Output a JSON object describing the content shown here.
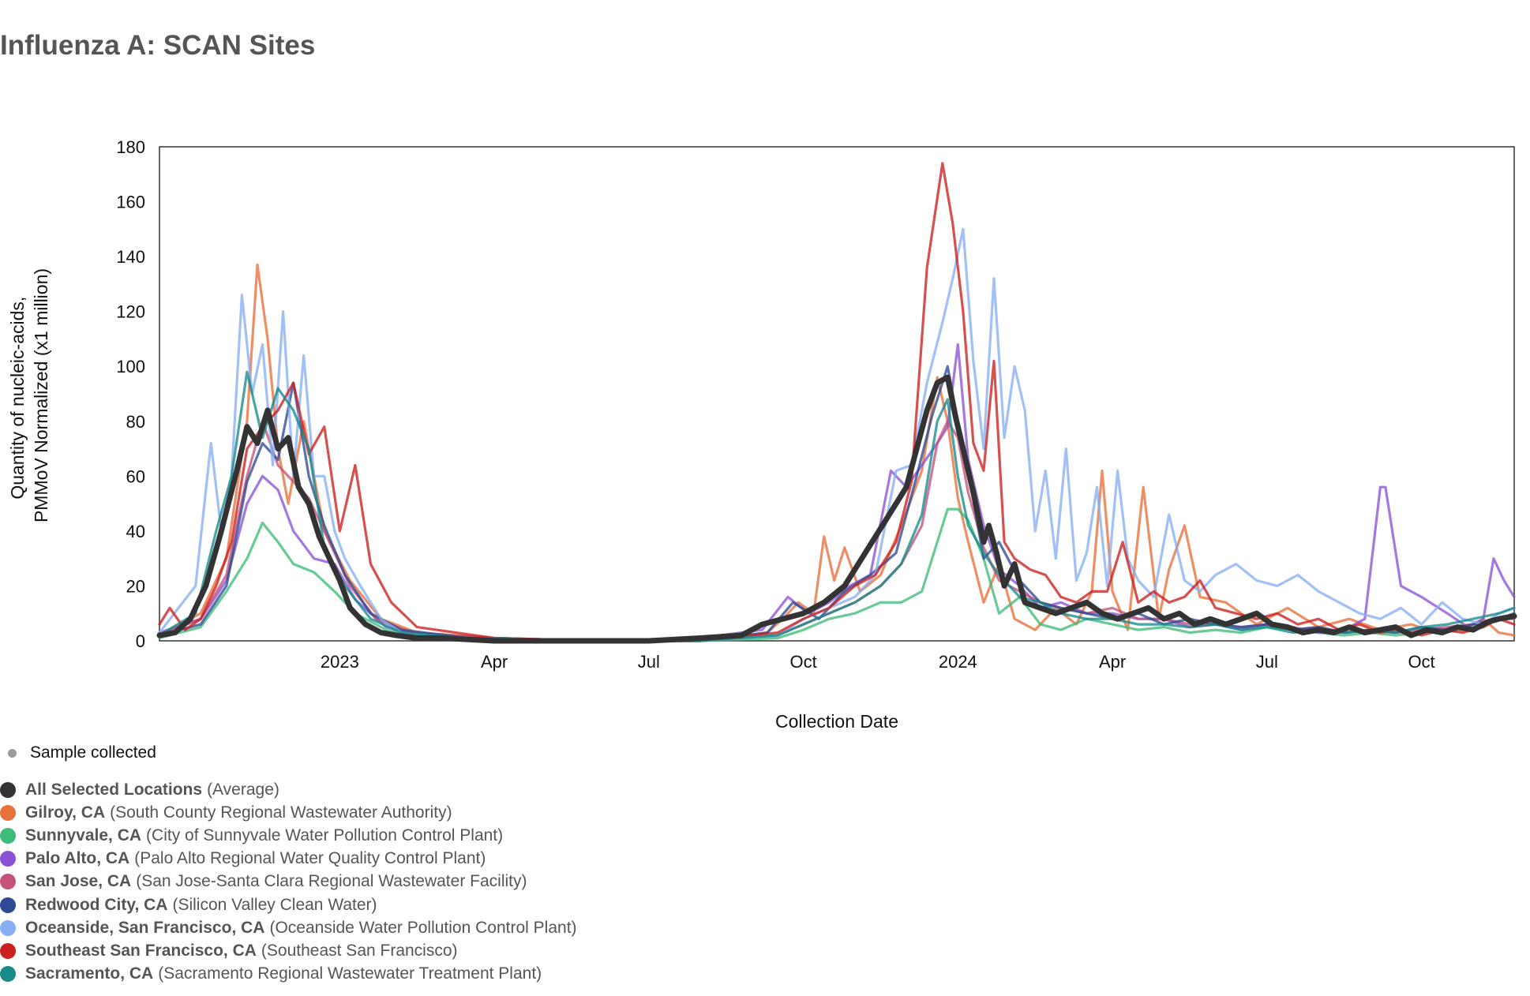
{
  "page": {
    "title": "Influenza A: SCAN Sites"
  },
  "legend": {
    "sample_label": "Sample collected",
    "items": [
      {
        "name": "All Selected Locations",
        "detail": "(Average)",
        "color": "#333333"
      },
      {
        "name": "Gilroy, CA",
        "detail": "(South County Regional Wastewater Authority)",
        "color": "#e8703a"
      },
      {
        "name": "Sunnyvale, CA",
        "detail": "(City of Sunnyvale Water Pollution Control Plant)",
        "color": "#3dbb78"
      },
      {
        "name": "Palo Alto, CA",
        "detail": "(Palo Alto Regional Water Quality Control Plant)",
        "color": "#8c52d6"
      },
      {
        "name": "San Jose, CA",
        "detail": "(San Jose-Santa Clara Regional Wastewater Facility)",
        "color": "#c4527a"
      },
      {
        "name": "Redwood City, CA",
        "detail": "(Silicon Valley Clean Water)",
        "color": "#2d4a94"
      },
      {
        "name": "Oceanside, San Francisco, CA",
        "detail": "(Oceanside Water Pollution Control Plant)",
        "color": "#86aef2"
      },
      {
        "name": "Southeast San Francisco, CA",
        "detail": "(Southeast San Francisco)",
        "color": "#cc1f1f"
      },
      {
        "name": "Sacramento, CA",
        "detail": "(Sacramento Regional Wastewater Treatment Plant)",
        "color": "#178a8a"
      }
    ]
  },
  "chart_data": {
    "type": "line",
    "title": "Influenza A: SCAN Sites",
    "xlabel": "Collection Date",
    "ylabel": [
      "Quantity of nucleic-acids,",
      "PMMoV Normalized (x1 million)"
    ],
    "xlim_month_index": [
      8.5,
      34.8
    ],
    "x_unit": "months since 2022-01-01 (fractional)",
    "ylim": [
      0,
      180
    ],
    "y_ticks": [
      0,
      20,
      40,
      60,
      80,
      100,
      120,
      140,
      160,
      180
    ],
    "x_ticks": [
      {
        "label": "2023",
        "value": 12
      },
      {
        "label": "Apr",
        "value": 15
      },
      {
        "label": "Jul",
        "value": 18
      },
      {
        "label": "Oct",
        "value": 21
      },
      {
        "label": "2024",
        "value": 24
      },
      {
        "label": "Apr",
        "value": 27
      },
      {
        "label": "Jul",
        "value": 30
      },
      {
        "label": "Oct",
        "value": 33
      }
    ],
    "series": [
      {
        "name": "Gilroy, CA",
        "color": "#e8703a",
        "x": [
          8.5,
          9.3,
          9.8,
          10.2,
          10.4,
          10.6,
          10.8,
          11.0,
          11.3,
          11.7,
          12.2,
          12.8,
          13.5,
          15,
          17,
          19,
          20.3,
          20.6,
          20.9,
          21.2,
          21.4,
          21.6,
          21.8,
          22.1,
          22.5,
          22.9,
          23.3,
          23.6,
          23.8,
          24.0,
          24.2,
          24.5,
          24.8,
          25.1,
          25.5,
          25.9,
          26.3,
          26.6,
          26.8,
          27.0,
          27.3,
          27.6,
          27.9,
          28.1,
          28.4,
          28.7,
          29.2,
          29.8,
          30.4,
          31.0,
          31.6,
          32.2,
          32.8,
          33.3,
          33.8,
          34.2,
          34.5,
          34.8
        ],
        "y": [
          2,
          10,
          30,
          80,
          137,
          110,
          70,
          50,
          80,
          40,
          22,
          8,
          3,
          1,
          0,
          0,
          3,
          8,
          14,
          10,
          38,
          22,
          34,
          18,
          24,
          42,
          62,
          96,
          80,
          52,
          36,
          14,
          28,
          8,
          4,
          12,
          6,
          18,
          62,
          18,
          4,
          56,
          8,
          26,
          42,
          16,
          14,
          6,
          12,
          5,
          8,
          4,
          6,
          3,
          4,
          8,
          3,
          2
        ]
      },
      {
        "name": "Sunnyvale, CA",
        "color": "#3dbb78",
        "x": [
          8.5,
          9.3,
          9.8,
          10.2,
          10.5,
          10.8,
          11.1,
          11.5,
          11.9,
          12.3,
          12.9,
          13.6,
          15,
          17,
          19,
          20.5,
          21.0,
          21.5,
          22.0,
          22.5,
          22.9,
          23.3,
          23.6,
          23.8,
          24.0,
          24.2,
          24.5,
          24.8,
          25.2,
          25.6,
          26.0,
          26.5,
          27.0,
          27.5,
          28.0,
          28.5,
          29.0,
          29.5,
          30.0,
          30.5,
          31.0,
          31.5,
          32.0,
          32.5,
          33.0,
          33.5,
          34.0,
          34.5,
          34.8
        ],
        "y": [
          1,
          5,
          18,
          30,
          43,
          36,
          28,
          25,
          18,
          10,
          4,
          1,
          0,
          0,
          0,
          1,
          4,
          8,
          10,
          14,
          14,
          18,
          36,
          48,
          48,
          44,
          30,
          10,
          16,
          6,
          4,
          8,
          6,
          4,
          5,
          3,
          4,
          3,
          5,
          4,
          3,
          2,
          3,
          2,
          3,
          4,
          5,
          8,
          10
        ]
      },
      {
        "name": "Palo Alto, CA",
        "color": "#8c52d6",
        "x": [
          8.5,
          9.3,
          9.8,
          10.2,
          10.5,
          10.8,
          11.1,
          11.5,
          11.9,
          12.3,
          12.9,
          13.6,
          15,
          17,
          19,
          20.2,
          20.7,
          21.1,
          21.5,
          21.9,
          22.3,
          22.7,
          23.0,
          23.3,
          23.6,
          23.8,
          24.0,
          24.2,
          24.5,
          24.8,
          25.2,
          25.6,
          26.0,
          26.5,
          27.0,
          27.5,
          28.0,
          28.5,
          29.0,
          29.5,
          30.0,
          30.5,
          31.0,
          31.5,
          31.9,
          32.2,
          32.3,
          32.6,
          33.0,
          33.5,
          33.9,
          34.2,
          34.4,
          34.6,
          34.8
        ],
        "y": [
          3,
          8,
          22,
          50,
          60,
          55,
          40,
          30,
          28,
          15,
          5,
          2,
          1,
          0,
          1,
          4,
          16,
          10,
          14,
          20,
          24,
          62,
          56,
          64,
          72,
          78,
          108,
          66,
          42,
          26,
          20,
          12,
          14,
          10,
          10,
          8,
          8,
          5,
          6,
          4,
          6,
          5,
          3,
          4,
          8,
          56,
          56,
          20,
          16,
          10,
          5,
          8,
          30,
          22,
          16
        ]
      },
      {
        "name": "San Jose, CA",
        "color": "#c4527a",
        "x": [
          8.5,
          9.3,
          9.8,
          10.2,
          10.5,
          10.8,
          11.1,
          11.4,
          11.8,
          12.2,
          12.7,
          13.4,
          15,
          17,
          19,
          20.5,
          21.0,
          21.5,
          22.0,
          22.5,
          22.9,
          23.3,
          23.6,
          23.8,
          24.0,
          24.2,
          24.5,
          24.8,
          25.2,
          25.6,
          26.0,
          26.5,
          27.0,
          27.5,
          28.0,
          28.5,
          29.0,
          29.5,
          30.0,
          30.5,
          31.0,
          31.5,
          32.0,
          32.5,
          33.0,
          33.5,
          34.0,
          34.5,
          34.8
        ],
        "y": [
          2,
          8,
          24,
          60,
          80,
          64,
          58,
          52,
          36,
          20,
          8,
          3,
          1,
          0,
          0,
          2,
          6,
          10,
          14,
          20,
          28,
          42,
          72,
          80,
          74,
          54,
          34,
          22,
          18,
          14,
          12,
          10,
          12,
          8,
          8,
          6,
          6,
          5,
          6,
          4,
          5,
          3,
          4,
          3,
          4,
          5,
          6,
          8,
          8
        ]
      },
      {
        "name": "Redwood City, CA",
        "color": "#2d4a94",
        "x": [
          8.5,
          9.3,
          9.8,
          10.2,
          10.5,
          10.8,
          11.1,
          11.4,
          11.7,
          12.1,
          12.6,
          13.2,
          14.5,
          17,
          19,
          20.3,
          20.8,
          21.3,
          21.8,
          22.3,
          22.8,
          23.2,
          23.5,
          23.8,
          24.0,
          24.2,
          24.5,
          24.8,
          25.2,
          25.6,
          26.0,
          26.5,
          27.0,
          27.5,
          28.0,
          28.5,
          29.0,
          29.5,
          30.0,
          30.5,
          31.0,
          31.5,
          32.0,
          32.5,
          33.0,
          33.5,
          34.0,
          34.5,
          34.8
        ],
        "y": [
          2,
          6,
          20,
          58,
          72,
          66,
          94,
          60,
          42,
          24,
          10,
          4,
          1,
          0,
          0,
          3,
          14,
          8,
          18,
          24,
          32,
          60,
          82,
          100,
          80,
          62,
          30,
          36,
          22,
          14,
          12,
          10,
          8,
          10,
          6,
          8,
          6,
          5,
          6,
          4,
          5,
          3,
          4,
          3,
          5,
          4,
          6,
          8,
          10
        ]
      },
      {
        "name": "Oceanside, San Francisco, CA",
        "color": "#86aef2",
        "x": [
          8.5,
          9.2,
          9.5,
          9.7,
          9.9,
          10.1,
          10.3,
          10.5,
          10.7,
          10.9,
          11.1,
          11.3,
          11.5,
          11.7,
          11.9,
          12.1,
          12.4,
          12.8,
          13.2,
          14,
          17,
          19,
          20.5,
          21.0,
          21.5,
          22.0,
          22.4,
          22.8,
          23.1,
          23.4,
          23.7,
          23.9,
          24.1,
          24.3,
          24.5,
          24.7,
          24.9,
          25.1,
          25.3,
          25.5,
          25.7,
          25.9,
          26.1,
          26.3,
          26.5,
          26.7,
          26.9,
          27.1,
          27.3,
          27.5,
          27.8,
          28.1,
          28.4,
          28.7,
          29.0,
          29.4,
          29.8,
          30.2,
          30.6,
          31.0,
          31.4,
          31.8,
          32.2,
          32.6,
          33.0,
          33.4,
          33.8,
          34.2,
          34.5,
          34.8
        ],
        "y": [
          3,
          20,
          72,
          40,
          60,
          126,
          90,
          108,
          64,
          120,
          60,
          104,
          60,
          60,
          40,
          30,
          20,
          8,
          3,
          1,
          0,
          0,
          2,
          8,
          12,
          16,
          24,
          62,
          64,
          94,
          116,
          132,
          150,
          102,
          70,
          132,
          74,
          100,
          84,
          40,
          62,
          30,
          70,
          22,
          32,
          56,
          20,
          62,
          30,
          22,
          16,
          46,
          22,
          18,
          24,
          28,
          22,
          20,
          24,
          18,
          14,
          10,
          8,
          12,
          6,
          14,
          8,
          6,
          10,
          12
        ]
      },
      {
        "name": "Southeast San Francisco, CA",
        "color": "#cc1f1f",
        "x": [
          8.5,
          8.7,
          9.0,
          9.3,
          9.6,
          9.9,
          10.2,
          10.5,
          10.8,
          11.1,
          11.4,
          11.7,
          12.0,
          12.3,
          12.6,
          13.0,
          13.5,
          15,
          17,
          19,
          20.5,
          21.0,
          21.5,
          22.0,
          22.4,
          22.8,
          23.1,
          23.4,
          23.7,
          23.9,
          24.1,
          24.3,
          24.5,
          24.7,
          24.9,
          25.1,
          25.4,
          25.7,
          26.0,
          26.3,
          26.6,
          26.9,
          27.2,
          27.5,
          27.8,
          28.1,
          28.4,
          28.7,
          29.0,
          29.4,
          29.8,
          30.2,
          30.6,
          31.0,
          31.4,
          31.8,
          32.2,
          32.6,
          33.0,
          33.4,
          33.8,
          34.2,
          34.5,
          34.8
        ],
        "y": [
          6,
          12,
          4,
          8,
          20,
          36,
          70,
          78,
          84,
          94,
          68,
          78,
          40,
          64,
          28,
          14,
          5,
          1,
          0,
          0,
          3,
          8,
          12,
          20,
          24,
          36,
          58,
          136,
          174,
          152,
          120,
          72,
          62,
          102,
          36,
          30,
          26,
          24,
          16,
          14,
          18,
          18,
          36,
          14,
          18,
          14,
          16,
          22,
          12,
          10,
          8,
          10,
          6,
          8,
          4,
          6,
          3,
          4,
          2,
          4,
          3,
          5,
          8,
          6
        ]
      },
      {
        "name": "Sacramento, CA",
        "color": "#178a8a",
        "x": [
          8.5,
          9.2,
          9.6,
          9.9,
          10.2,
          10.5,
          10.8,
          11.1,
          11.4,
          11.7,
          12.1,
          12.6,
          13.2,
          14.5,
          17,
          19,
          20.5,
          21.0,
          21.5,
          22.0,
          22.5,
          22.9,
          23.3,
          23.6,
          23.8,
          24.0,
          24.2,
          24.5,
          24.8,
          25.2,
          25.6,
          26.0,
          26.5,
          27.0,
          27.5,
          28.0,
          28.5,
          29.0,
          29.5,
          30.0,
          30.5,
          31.0,
          31.5,
          32.0,
          32.5,
          33.0,
          33.5,
          34.0,
          34.5,
          34.8
        ],
        "y": [
          2,
          10,
          40,
          60,
          98,
          74,
          92,
          84,
          70,
          34,
          20,
          8,
          3,
          1,
          0,
          0,
          2,
          6,
          10,
          14,
          20,
          28,
          46,
          80,
          88,
          60,
          42,
          32,
          24,
          16,
          14,
          10,
          8,
          8,
          6,
          6,
          5,
          6,
          4,
          5,
          3,
          4,
          3,
          4,
          3,
          5,
          6,
          8,
          10,
          12
        ]
      },
      {
        "name": "All Selected Locations",
        "color": "#333333",
        "x": [
          8.5,
          8.8,
          9.1,
          9.4,
          9.7,
          10.0,
          10.2,
          10.4,
          10.6,
          10.8,
          11.0,
          11.2,
          11.4,
          11.6,
          11.8,
          12.0,
          12.2,
          12.5,
          12.8,
          13.1,
          13.5,
          14.0,
          15,
          16,
          17,
          18,
          19,
          19.8,
          20.2,
          20.6,
          21.0,
          21.4,
          21.8,
          22.2,
          22.6,
          23.0,
          23.2,
          23.4,
          23.6,
          23.8,
          23.95,
          24.1,
          24.3,
          24.5,
          24.6,
          24.75,
          24.9,
          25.1,
          25.3,
          25.6,
          25.9,
          26.2,
          26.5,
          26.8,
          27.1,
          27.4,
          27.7,
          28.0,
          28.3,
          28.6,
          28.9,
          29.2,
          29.5,
          29.8,
          30.1,
          30.4,
          30.7,
          31.0,
          31.3,
          31.6,
          31.9,
          32.2,
          32.5,
          32.8,
          33.1,
          33.4,
          33.7,
          34.0,
          34.3,
          34.5,
          34.8
        ],
        "y": [
          2,
          3,
          8,
          20,
          40,
          62,
          78,
          72,
          84,
          70,
          74,
          56,
          50,
          38,
          30,
          22,
          12,
          6,
          3,
          2,
          1,
          1,
          0,
          0,
          0,
          0,
          1,
          2,
          6,
          8,
          10,
          14,
          20,
          32,
          44,
          56,
          70,
          84,
          94,
          96,
          82,
          70,
          54,
          36,
          42,
          32,
          20,
          28,
          14,
          12,
          10,
          12,
          14,
          10,
          8,
          10,
          12,
          8,
          10,
          6,
          8,
          6,
          8,
          10,
          6,
          5,
          3,
          4,
          3,
          5,
          3,
          4,
          5,
          2,
          4,
          3,
          5,
          4,
          7,
          8,
          9
        ]
      }
    ]
  }
}
